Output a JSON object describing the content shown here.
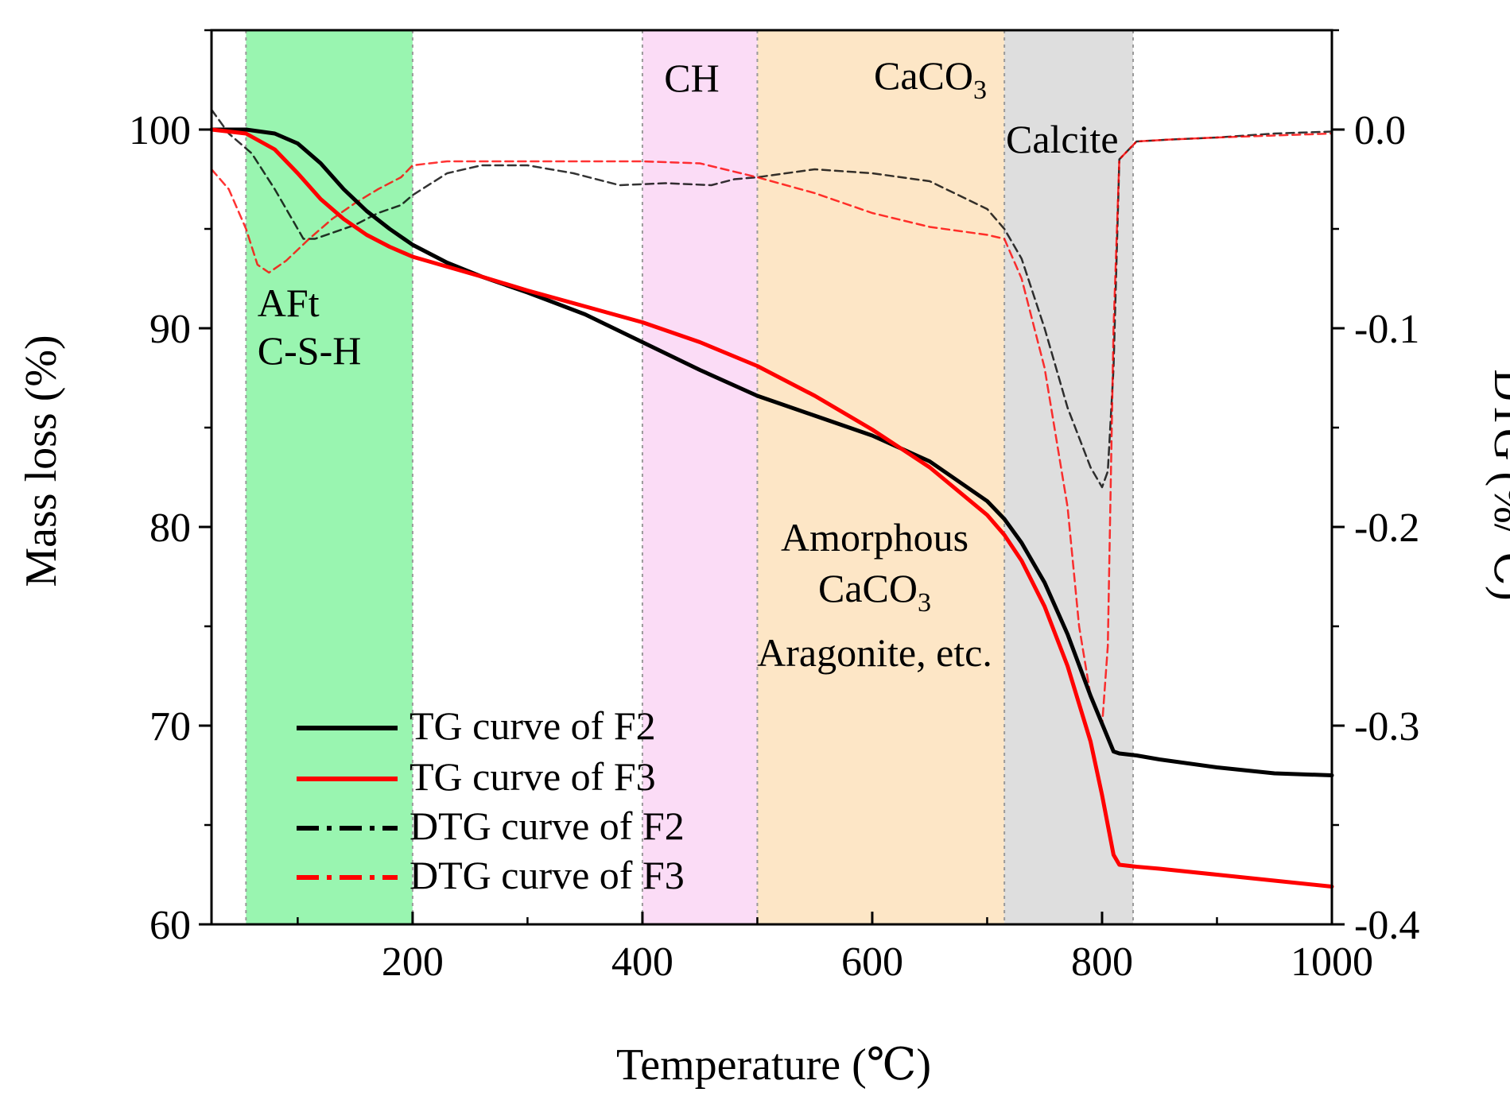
{
  "chart_data": {
    "type": "line",
    "xlabel": "Temperature (℃)",
    "ylabel_left": "Mass loss (%)",
    "ylabel_right": "DTG (%/℃)",
    "xlim": [
      25,
      1000
    ],
    "ylim_left": [
      60,
      105
    ],
    "ylim_right": [
      -0.4,
      0.05
    ],
    "x_ticks": [
      200,
      400,
      600,
      800,
      1000
    ],
    "y_ticks_left": [
      60,
      70,
      80,
      90,
      100
    ],
    "y_ticks_right": [
      -0.4,
      -0.3,
      -0.2,
      -0.1,
      0.0
    ],
    "y_tick_labels_right": [
      "-0.4",
      "-0.3",
      "-0.2",
      "-0.1",
      "0.0"
    ],
    "grid": false,
    "legend_position": "bottom-left",
    "regions": [
      {
        "x0": 55,
        "x1": 200,
        "color": "#99f5b0",
        "labels": [
          "AFt",
          "C-S-H"
        ]
      },
      {
        "x0": 400,
        "x1": 500,
        "color": "#fbdcf6",
        "labels": [
          "CH"
        ]
      },
      {
        "x0": 500,
        "x1": 715,
        "color": "#fde6c6",
        "labels": [
          "Amorphous",
          "CaCO3",
          "Aragonite, etc."
        ]
      },
      {
        "x0": 715,
        "x1": 827,
        "color": "#dedede",
        "labels": [
          "CaCO3",
          "Calcite"
        ]
      }
    ],
    "series": [
      {
        "name": "TG curve of F2",
        "axis": "left",
        "style": "solid",
        "color": "#000000",
        "x": [
          25,
          55,
          80,
          100,
          120,
          140,
          160,
          180,
          200,
          230,
          260,
          300,
          350,
          400,
          450,
          500,
          550,
          600,
          650,
          700,
          715,
          730,
          750,
          770,
          790,
          810,
          815,
          830,
          850,
          900,
          950,
          1000
        ],
        "y": [
          100,
          100,
          99.8,
          99.3,
          98.3,
          97.0,
          95.9,
          95.0,
          94.2,
          93.3,
          92.6,
          91.8,
          90.7,
          89.3,
          87.9,
          86.6,
          85.6,
          84.6,
          83.3,
          81.3,
          80.4,
          79.2,
          77.2,
          74.6,
          71.5,
          68.7,
          68.6,
          68.5,
          68.3,
          67.9,
          67.6,
          67.5
        ]
      },
      {
        "name": "TG curve of F3",
        "axis": "left",
        "style": "solid",
        "color": "#ff0000",
        "x": [
          25,
          55,
          80,
          100,
          120,
          140,
          160,
          180,
          200,
          230,
          260,
          300,
          350,
          400,
          450,
          500,
          550,
          600,
          650,
          700,
          715,
          730,
          750,
          770,
          790,
          800,
          810,
          815,
          830,
          850,
          900,
          950,
          1000
        ],
        "y": [
          100,
          99.8,
          99.0,
          97.8,
          96.5,
          95.5,
          94.7,
          94.1,
          93.6,
          93.1,
          92.6,
          91.9,
          91.1,
          90.3,
          89.3,
          88.1,
          86.6,
          84.9,
          83.0,
          80.6,
          79.6,
          78.3,
          76.0,
          73.0,
          69.2,
          66.5,
          63.5,
          63.0,
          62.9,
          62.8,
          62.5,
          62.2,
          61.9
        ]
      },
      {
        "name": "DTG curve of F2",
        "axis": "right",
        "style": "dashdot",
        "color": "#000000",
        "x": [
          25,
          40,
          60,
          80,
          95,
          105,
          115,
          130,
          150,
          170,
          190,
          200,
          230,
          260,
          300,
          340,
          380,
          420,
          460,
          480,
          500,
          550,
          600,
          650,
          700,
          715,
          730,
          750,
          770,
          790,
          800,
          805,
          810,
          815,
          830,
          860,
          900,
          950,
          1000
        ],
        "y": [
          0.01,
          -0.002,
          -0.012,
          -0.03,
          -0.045,
          -0.055,
          -0.055,
          -0.052,
          -0.048,
          -0.042,
          -0.038,
          -0.033,
          -0.022,
          -0.018,
          -0.018,
          -0.022,
          -0.028,
          -0.027,
          -0.028,
          -0.025,
          -0.024,
          -0.02,
          -0.022,
          -0.026,
          -0.04,
          -0.05,
          -0.065,
          -0.1,
          -0.14,
          -0.17,
          -0.18,
          -0.172,
          -0.12,
          -0.015,
          -0.006,
          -0.005,
          -0.004,
          -0.002,
          -0.001
        ]
      },
      {
        "name": "DTG curve of F3",
        "axis": "right",
        "style": "dashdot",
        "color": "#ff0000",
        "x": [
          25,
          40,
          55,
          65,
          75,
          90,
          110,
          130,
          150,
          170,
          190,
          200,
          230,
          260,
          300,
          350,
          400,
          450,
          500,
          550,
          600,
          650,
          700,
          715,
          730,
          750,
          770,
          780,
          790,
          800,
          805,
          810,
          815,
          830,
          860,
          900,
          950,
          1000
        ],
        "y": [
          -0.02,
          -0.03,
          -0.05,
          -0.068,
          -0.072,
          -0.066,
          -0.055,
          -0.045,
          -0.037,
          -0.03,
          -0.024,
          -0.018,
          -0.016,
          -0.016,
          -0.016,
          -0.016,
          -0.016,
          -0.017,
          -0.024,
          -0.032,
          -0.042,
          -0.049,
          -0.053,
          -0.055,
          -0.075,
          -0.12,
          -0.19,
          -0.25,
          -0.285,
          -0.3,
          -0.26,
          -0.1,
          -0.015,
          -0.006,
          -0.005,
          -0.004,
          -0.003,
          -0.002
        ]
      }
    ]
  }
}
